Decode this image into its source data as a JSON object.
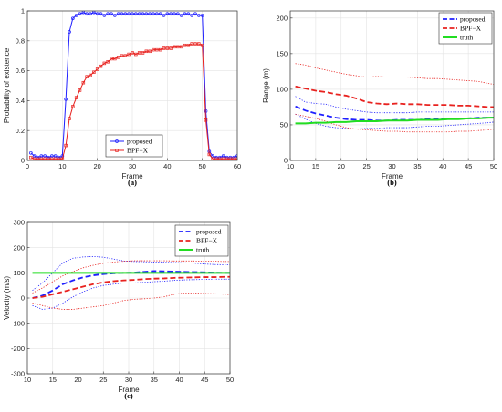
{
  "chart_data": [
    {
      "type": "line",
      "caption": "(a)",
      "xlabel": "Frame",
      "ylabel": "Probability of existence",
      "xlim": [
        0,
        60
      ],
      "ylim": [
        0,
        1
      ],
      "xticks": [
        "0",
        "10",
        "20",
        "30",
        "40",
        "50",
        "60"
      ],
      "yticks": [
        "0",
        "0.2",
        "0.4",
        "0.6",
        "0.8",
        "1"
      ],
      "grid": true,
      "legend_position": "bottom-center",
      "x": [
        1,
        2,
        3,
        4,
        5,
        6,
        7,
        8,
        9,
        10,
        11,
        12,
        13,
        14,
        15,
        16,
        17,
        18,
        19,
        20,
        21,
        22,
        23,
        24,
        25,
        26,
        27,
        28,
        29,
        30,
        31,
        32,
        33,
        34,
        35,
        36,
        37,
        38,
        39,
        40,
        41,
        42,
        43,
        44,
        45,
        46,
        47,
        48,
        49,
        50,
        51,
        52,
        53,
        54,
        55,
        56,
        57,
        58,
        59,
        60
      ],
      "series": [
        {
          "name": "proposed",
          "color": "#1f1fff",
          "style": "solid",
          "marker": "circle",
          "values": [
            0.05,
            0.03,
            0.02,
            0.03,
            0.03,
            0.02,
            0.03,
            0.03,
            0.02,
            0.03,
            0.41,
            0.86,
            0.95,
            0.97,
            0.98,
            0.99,
            0.98,
            0.98,
            0.99,
            0.98,
            0.98,
            0.97,
            0.98,
            0.98,
            0.97,
            0.98,
            0.98,
            0.98,
            0.98,
            0.98,
            0.98,
            0.98,
            0.98,
            0.98,
            0.98,
            0.98,
            0.98,
            0.98,
            0.97,
            0.98,
            0.98,
            0.98,
            0.98,
            0.97,
            0.98,
            0.98,
            0.97,
            0.98,
            0.97,
            0.97,
            0.33,
            0.06,
            0.03,
            0.02,
            0.02,
            0.03,
            0.02,
            0.02,
            0.02,
            0.03
          ]
        },
        {
          "name": "BPF−X",
          "color": "#e8221f",
          "style": "solid",
          "marker": "square",
          "values": [
            0.02,
            0.01,
            0.01,
            0.01,
            0.01,
            0.01,
            0.01,
            0.01,
            0.01,
            0.01,
            0.1,
            0.28,
            0.36,
            0.42,
            0.47,
            0.52,
            0.56,
            0.57,
            0.59,
            0.61,
            0.63,
            0.65,
            0.66,
            0.68,
            0.68,
            0.69,
            0.7,
            0.7,
            0.71,
            0.72,
            0.71,
            0.72,
            0.72,
            0.73,
            0.73,
            0.74,
            0.74,
            0.74,
            0.75,
            0.75,
            0.75,
            0.76,
            0.76,
            0.76,
            0.77,
            0.77,
            0.78,
            0.78,
            0.78,
            0.77,
            0.27,
            0.04,
            0.01,
            0.01,
            0.01,
            0.01,
            0.01,
            0.01,
            0.01,
            0.01
          ]
        }
      ]
    },
    {
      "type": "line",
      "caption": "(b)",
      "xlabel": "Frame",
      "ylabel": "Range (m)",
      "xlim": [
        10,
        50
      ],
      "ylim": [
        0,
        210
      ],
      "xticks": [
        "10",
        "15",
        "20",
        "25",
        "30",
        "35",
        "40",
        "45",
        "50"
      ],
      "yticks": [
        "0",
        "50",
        "100",
        "150",
        "200"
      ],
      "grid": true,
      "legend_position": "top-right",
      "x": [
        11,
        13,
        15,
        17,
        19,
        21,
        23,
        25,
        27,
        29,
        31,
        33,
        35,
        37,
        39,
        41,
        43,
        45,
        47,
        49,
        50
      ],
      "series": [
        {
          "name": "proposed",
          "color": "#1f1fff",
          "style": "dashed",
          "values": [
            76,
            70,
            66,
            63,
            60,
            58,
            57,
            57,
            56,
            56,
            57,
            57,
            57,
            58,
            58,
            58,
            59,
            59,
            60,
            60,
            60
          ]
        },
        {
          "name": "",
          "color": "#1f1fff",
          "style": "dotted",
          "band_of": "proposed",
          "values": [
            90,
            82,
            80,
            79,
            75,
            72,
            70,
            68,
            67,
            67,
            67,
            67,
            68,
            68,
            68,
            68,
            68,
            68,
            68,
            68,
            68
          ]
        },
        {
          "name": "",
          "color": "#1f1fff",
          "style": "dotted",
          "band_of": "proposed",
          "values": [
            65,
            58,
            52,
            48,
            46,
            45,
            44,
            45,
            45,
            46,
            46,
            46,
            47,
            48,
            48,
            49,
            50,
            51,
            52,
            53,
            54
          ]
        },
        {
          "name": "BPF−X",
          "color": "#e8221f",
          "style": "dashed",
          "values": [
            104,
            101,
            98,
            96,
            93,
            91,
            87,
            82,
            80,
            79,
            80,
            79,
            79,
            78,
            78,
            78,
            77,
            77,
            76,
            75,
            75
          ]
        },
        {
          "name": "",
          "color": "#e8221f",
          "style": "dotted",
          "band_of": "BPF−X",
          "values": [
            136,
            134,
            130,
            127,
            124,
            121,
            119,
            117,
            118,
            117,
            117,
            117,
            116,
            115,
            115,
            114,
            113,
            112,
            111,
            108,
            107
          ]
        },
        {
          "name": "",
          "color": "#e8221f",
          "style": "dotted",
          "band_of": "BPF−X",
          "values": [
            65,
            62,
            59,
            55,
            50,
            46,
            44,
            43,
            42,
            41,
            41,
            40,
            40,
            40,
            40,
            40,
            41,
            41,
            42,
            43,
            44
          ]
        },
        {
          "name": "truth",
          "color": "#22dd22",
          "style": "solid",
          "values": [
            52,
            52,
            53,
            53,
            54,
            54,
            55,
            55,
            55,
            56,
            56,
            56,
            57,
            57,
            57,
            58,
            58,
            59,
            59,
            60,
            60
          ]
        }
      ]
    },
    {
      "type": "line",
      "caption": "(c)",
      "xlabel": "Frame",
      "ylabel": "Velocity (m/s)",
      "xlim": [
        10,
        50
      ],
      "ylim": [
        -300,
        300
      ],
      "xticks": [
        "10",
        "15",
        "20",
        "25",
        "30",
        "35",
        "40",
        "45",
        "50"
      ],
      "yticks": [
        "-300",
        "-200",
        "-100",
        "0",
        "100",
        "200",
        "300"
      ],
      "grid": true,
      "legend_position": "top-right",
      "x": [
        11,
        13,
        15,
        17,
        19,
        21,
        23,
        25,
        27,
        29,
        31,
        33,
        35,
        37,
        39,
        41,
        43,
        45,
        47,
        49,
        50
      ],
      "series": [
        {
          "name": "proposed",
          "color": "#1f1fff",
          "style": "dashed",
          "values": [
            0,
            10,
            30,
            55,
            70,
            82,
            90,
            95,
            98,
            100,
            101,
            104,
            107,
            106,
            105,
            104,
            103,
            102,
            101,
            100,
            100
          ]
        },
        {
          "name": "",
          "color": "#1f1fff",
          "style": "dotted",
          "band_of": "proposed",
          "values": [
            30,
            60,
            100,
            140,
            158,
            163,
            165,
            162,
            155,
            147,
            145,
            144,
            143,
            142,
            141,
            140,
            138,
            135,
            133,
            132,
            132
          ]
        },
        {
          "name": "",
          "color": "#1f1fff",
          "style": "dotted",
          "band_of": "proposed",
          "values": [
            -30,
            -45,
            -40,
            -20,
            5,
            25,
            40,
            50,
            55,
            60,
            60,
            62,
            65,
            67,
            70,
            72,
            73,
            74,
            75,
            75,
            75
          ]
        },
        {
          "name": "BPF−X",
          "color": "#e8221f",
          "style": "dashed",
          "values": [
            0,
            5,
            15,
            25,
            35,
            45,
            55,
            62,
            67,
            70,
            72,
            75,
            77,
            78,
            80,
            81,
            82,
            83,
            83,
            84,
            84
          ]
        },
        {
          "name": "",
          "color": "#e8221f",
          "style": "dotted",
          "band_of": "BPF−X",
          "values": [
            20,
            40,
            65,
            88,
            105,
            120,
            130,
            138,
            143,
            146,
            148,
            148,
            148,
            148,
            147,
            147,
            147,
            146,
            146,
            145,
            145
          ]
        },
        {
          "name": "",
          "color": "#e8221f",
          "style": "dotted",
          "band_of": "BPF−X",
          "values": [
            -20,
            -30,
            -40,
            -45,
            -45,
            -40,
            -35,
            -30,
            -20,
            -10,
            -5,
            -3,
            0,
            5,
            15,
            20,
            20,
            18,
            17,
            15,
            14
          ]
        },
        {
          "name": "truth",
          "color": "#22dd22",
          "style": "solid",
          "values": [
            100,
            100,
            100,
            100,
            100,
            100,
            100,
            100,
            100,
            100,
            100,
            100,
            100,
            100,
            100,
            100,
            100,
            100,
            100,
            100,
            100
          ]
        }
      ]
    }
  ]
}
